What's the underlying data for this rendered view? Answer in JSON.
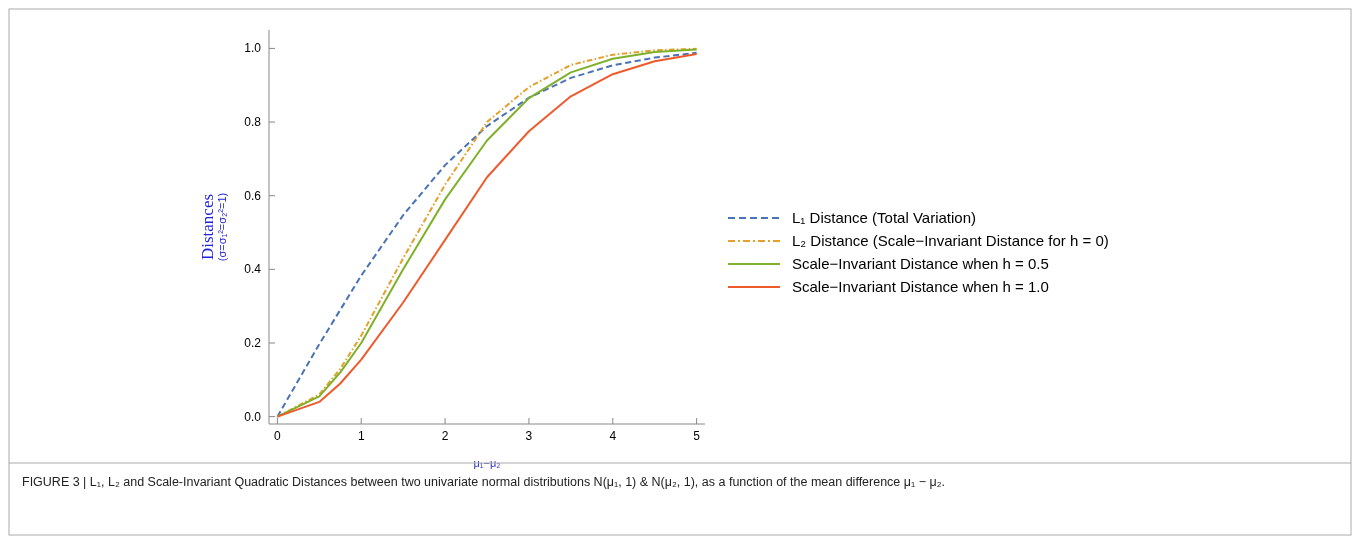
{
  "chart_data": {
    "type": "line",
    "ylabel": "Distances\n(σ=σ₁²=σ₂²=1)",
    "xlabel": "μ₁−μ₂",
    "x": [
      0,
      0.5,
      0.75,
      1,
      1.5,
      2,
      2.5,
      3,
      3.5,
      4,
      4.5,
      5
    ],
    "series": [
      {
        "name": "L₁ Distance (Total Variation)",
        "color": "#4a73b5",
        "line_style": "dashed",
        "values": [
          0,
          0.197,
          0.29,
          0.383,
          0.547,
          0.683,
          0.789,
          0.866,
          0.92,
          0.954,
          0.975,
          0.988
        ]
      },
      {
        "name": "L₂ Distance (Scale−Invariant Distance for h = 0)",
        "color": "#e3a02a",
        "line_style": "dotted",
        "values": [
          0,
          0.06,
          0.13,
          0.22,
          0.43,
          0.63,
          0.8,
          0.895,
          0.955,
          0.983,
          0.995,
          0.999
        ]
      },
      {
        "name": "Scale−Invariant Distance when h = 0.5",
        "color": "#7fb02a",
        "line_style": "solid",
        "values": [
          0,
          0.055,
          0.12,
          0.2,
          0.4,
          0.59,
          0.75,
          0.865,
          0.935,
          0.972,
          0.99,
          0.997
        ]
      },
      {
        "name": "Scale−Invariant Distance when h = 1.0",
        "color": "#ee5a2c",
        "line_style": "solid",
        "values": [
          0,
          0.04,
          0.09,
          0.155,
          0.31,
          0.48,
          0.65,
          0.775,
          0.87,
          0.93,
          0.965,
          0.985
        ]
      }
    ],
    "xlim": [
      -0.1,
      5.1
    ],
    "ylim": [
      -0.02,
      1.05
    ],
    "xticks": [
      0,
      1,
      2,
      3,
      4,
      5
    ],
    "yticks": [
      {
        "value": 0,
        "label": "0.0"
      },
      {
        "value": 0.2,
        "label": "0.2"
      },
      {
        "value": 0.4,
        "label": "0.4"
      },
      {
        "value": 0.6,
        "label": "0.6"
      },
      {
        "value": 0.8,
        "label": "0.8"
      },
      {
        "value": 1,
        "label": "1.0"
      }
    ],
    "grid": false,
    "legend": "right",
    "annotations": [
      "FIGURE 3 | L₁, L₂ and Scale-Invariant Quadratic Distances between two univariate normal distributions N(μ₁, 1) & N(μ₂, 1), as a function of the mean difference μ₁ − μ₂."
    ]
  }
}
